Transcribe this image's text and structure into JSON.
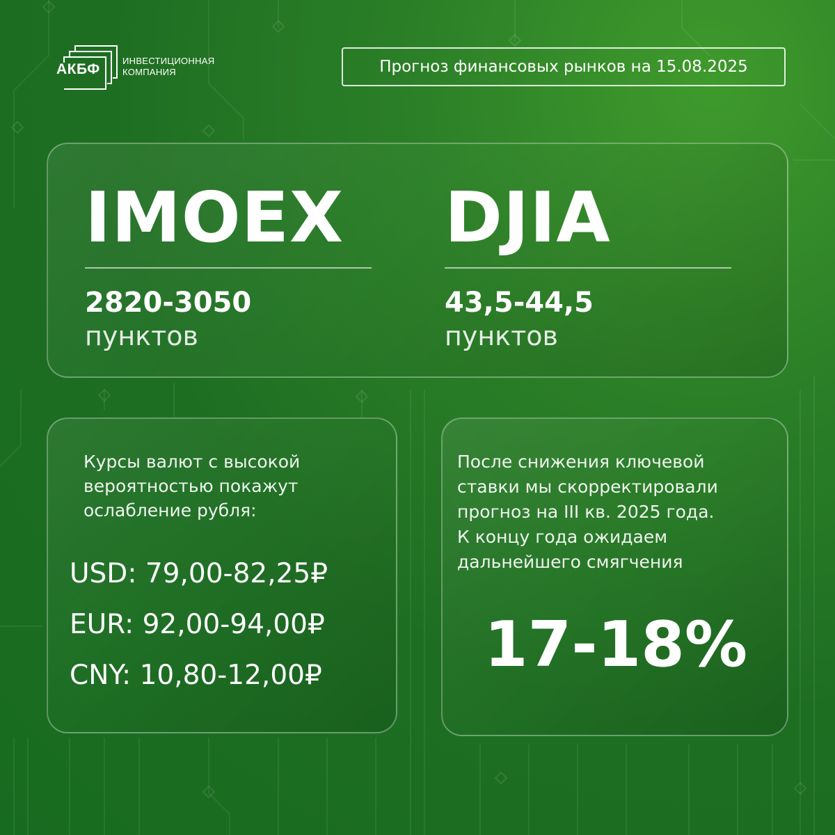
{
  "colors": {
    "background": "#1e6e22",
    "accent": "#3f9a2c",
    "text": "#ffffff"
  },
  "logo": {
    "name": "АКБФ",
    "subtitle_line1": "ИНВЕСТИЦИОННАЯ",
    "subtitle_line2": "КОМПАНИЯ"
  },
  "header": {
    "forecast": "Прогноз финансовых рынков на 15.08.2025"
  },
  "indices": [
    {
      "name": "IMOEX",
      "range": "2820-3050",
      "unit": "пунктов"
    },
    {
      "name": "DJIA",
      "range": "43,5-44,5",
      "unit": "пунктов"
    }
  ],
  "fx": {
    "intro": [
      "Курсы валют с высокой",
      "вероятностью покажут",
      "ослабление рубля:"
    ],
    "rates": [
      {
        "text": "USD: 79,00-82,25₽"
      },
      {
        "text": "EUR: 92,00-94,00₽"
      },
      {
        "text": "CNY: 10,80-12,00₽"
      }
    ]
  },
  "key_rate": {
    "text": [
      "После снижения ключевой",
      "ставки мы скорректировали",
      "прогноз на III кв. 2025 года.",
      "К концу года ожидаем",
      "дальнейшего смягчения"
    ],
    "value": "17-18%"
  }
}
